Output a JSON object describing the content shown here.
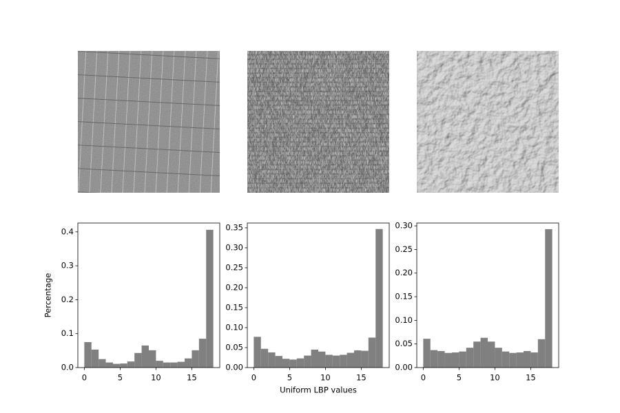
{
  "chart_data": [
    {
      "type": "histogram",
      "color": "#808080",
      "bins": [
        0,
        1,
        2,
        3,
        4,
        5,
        6,
        7,
        8,
        9,
        10,
        11,
        12,
        13,
        14,
        15,
        16,
        17,
        18
      ],
      "values": [
        0.075,
        0.053,
        0.025,
        0.015,
        0.011,
        0.012,
        0.018,
        0.043,
        0.065,
        0.051,
        0.02,
        0.015,
        0.015,
        0.017,
        0.027,
        0.051,
        0.085,
        0.406
      ],
      "xlim": [
        -0.9,
        18.9
      ],
      "ylim": [
        0,
        0.426
      ],
      "xticks": [
        0,
        5,
        10,
        15
      ],
      "yticks": [
        {
          "value": 0,
          "label": "0.0"
        },
        0.1,
        0.2,
        0.3,
        0.4
      ],
      "ylabel": "Percentage"
    },
    {
      "type": "histogram",
      "color": "#808080",
      "bins": [
        0,
        1,
        2,
        3,
        4,
        5,
        6,
        7,
        8,
        9,
        10,
        11,
        12,
        13,
        14,
        15,
        16,
        17,
        18
      ],
      "values": [
        0.077,
        0.047,
        0.038,
        0.029,
        0.022,
        0.02,
        0.023,
        0.03,
        0.045,
        0.04,
        0.032,
        0.03,
        0.032,
        0.037,
        0.043,
        0.042,
        0.075,
        0.347
      ],
      "xlim": [
        -0.9,
        18.9
      ],
      "ylim": [
        0,
        0.362
      ],
      "xticks": [
        0,
        5,
        10,
        15
      ],
      "yticks": [
        {
          "value": 0,
          "label": "0.00"
        },
        0.05,
        {
          "value": 0.1,
          "label": "0.10"
        },
        0.15,
        {
          "value": 0.2,
          "label": "0.20"
        },
        0.25,
        {
          "value": 0.3,
          "label": "0.30"
        },
        0.35
      ],
      "xlabel": "Uniform LBP values"
    },
    {
      "type": "histogram",
      "color": "#808080",
      "bins": [
        0,
        1,
        2,
        3,
        4,
        5,
        6,
        7,
        8,
        9,
        10,
        11,
        12,
        13,
        14,
        15,
        16,
        17,
        18
      ],
      "values": [
        0.061,
        0.037,
        0.035,
        0.031,
        0.032,
        0.034,
        0.042,
        0.055,
        0.063,
        0.055,
        0.042,
        0.034,
        0.031,
        0.032,
        0.035,
        0.032,
        0.06,
        0.293
      ],
      "xlim": [
        -0.9,
        18.9
      ],
      "ylim": [
        0,
        0.306
      ],
      "xticks": [
        0,
        5,
        10,
        15
      ],
      "yticks": [
        {
          "value": 0,
          "label": "0.00"
        },
        0.05,
        {
          "value": 0.1,
          "label": "0.10"
        },
        0.15,
        {
          "value": 0.2,
          "label": "0.20"
        },
        0.25,
        {
          "value": 0.3,
          "label": "0.30"
        }
      ]
    }
  ]
}
